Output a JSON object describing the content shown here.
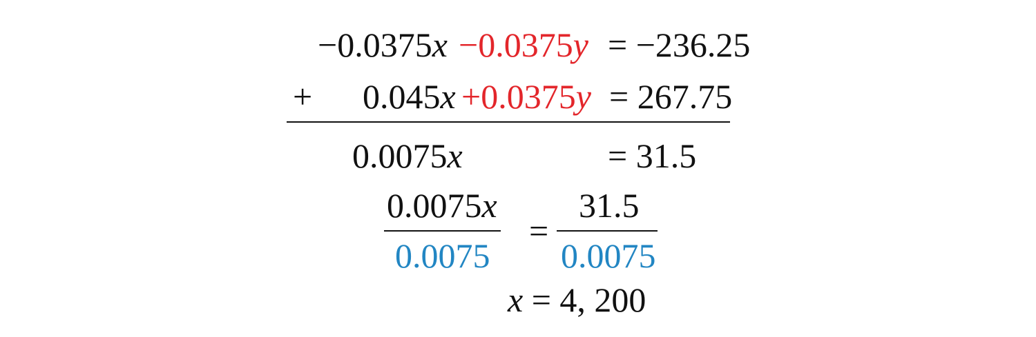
{
  "colors": {
    "eliminated_terms": "#e3262b",
    "divisor": "#2286c3",
    "text": "#111111"
  },
  "row1": {
    "coef_x": "−0.0375",
    "var_x": "x",
    "red_term": "−0.0375",
    "var_y": "y",
    "rhs": "= −236.25"
  },
  "row2": {
    "operator": "+",
    "coef_x": "0.045",
    "var_x": "x",
    "red_term": "+0.0375",
    "var_y": "y",
    "rhs": "= 267.75"
  },
  "row3": {
    "coef_x": "0.0075",
    "var_x": "x",
    "rhs": "= 31.5"
  },
  "division": {
    "left_numerator": "0.0075",
    "left_var": "x",
    "left_denominator": "0.0075",
    "equals": "=",
    "right_numerator": "31.5",
    "right_denominator": "0.0075"
  },
  "result": {
    "var": "x",
    "rhs": "= 4, 200"
  }
}
